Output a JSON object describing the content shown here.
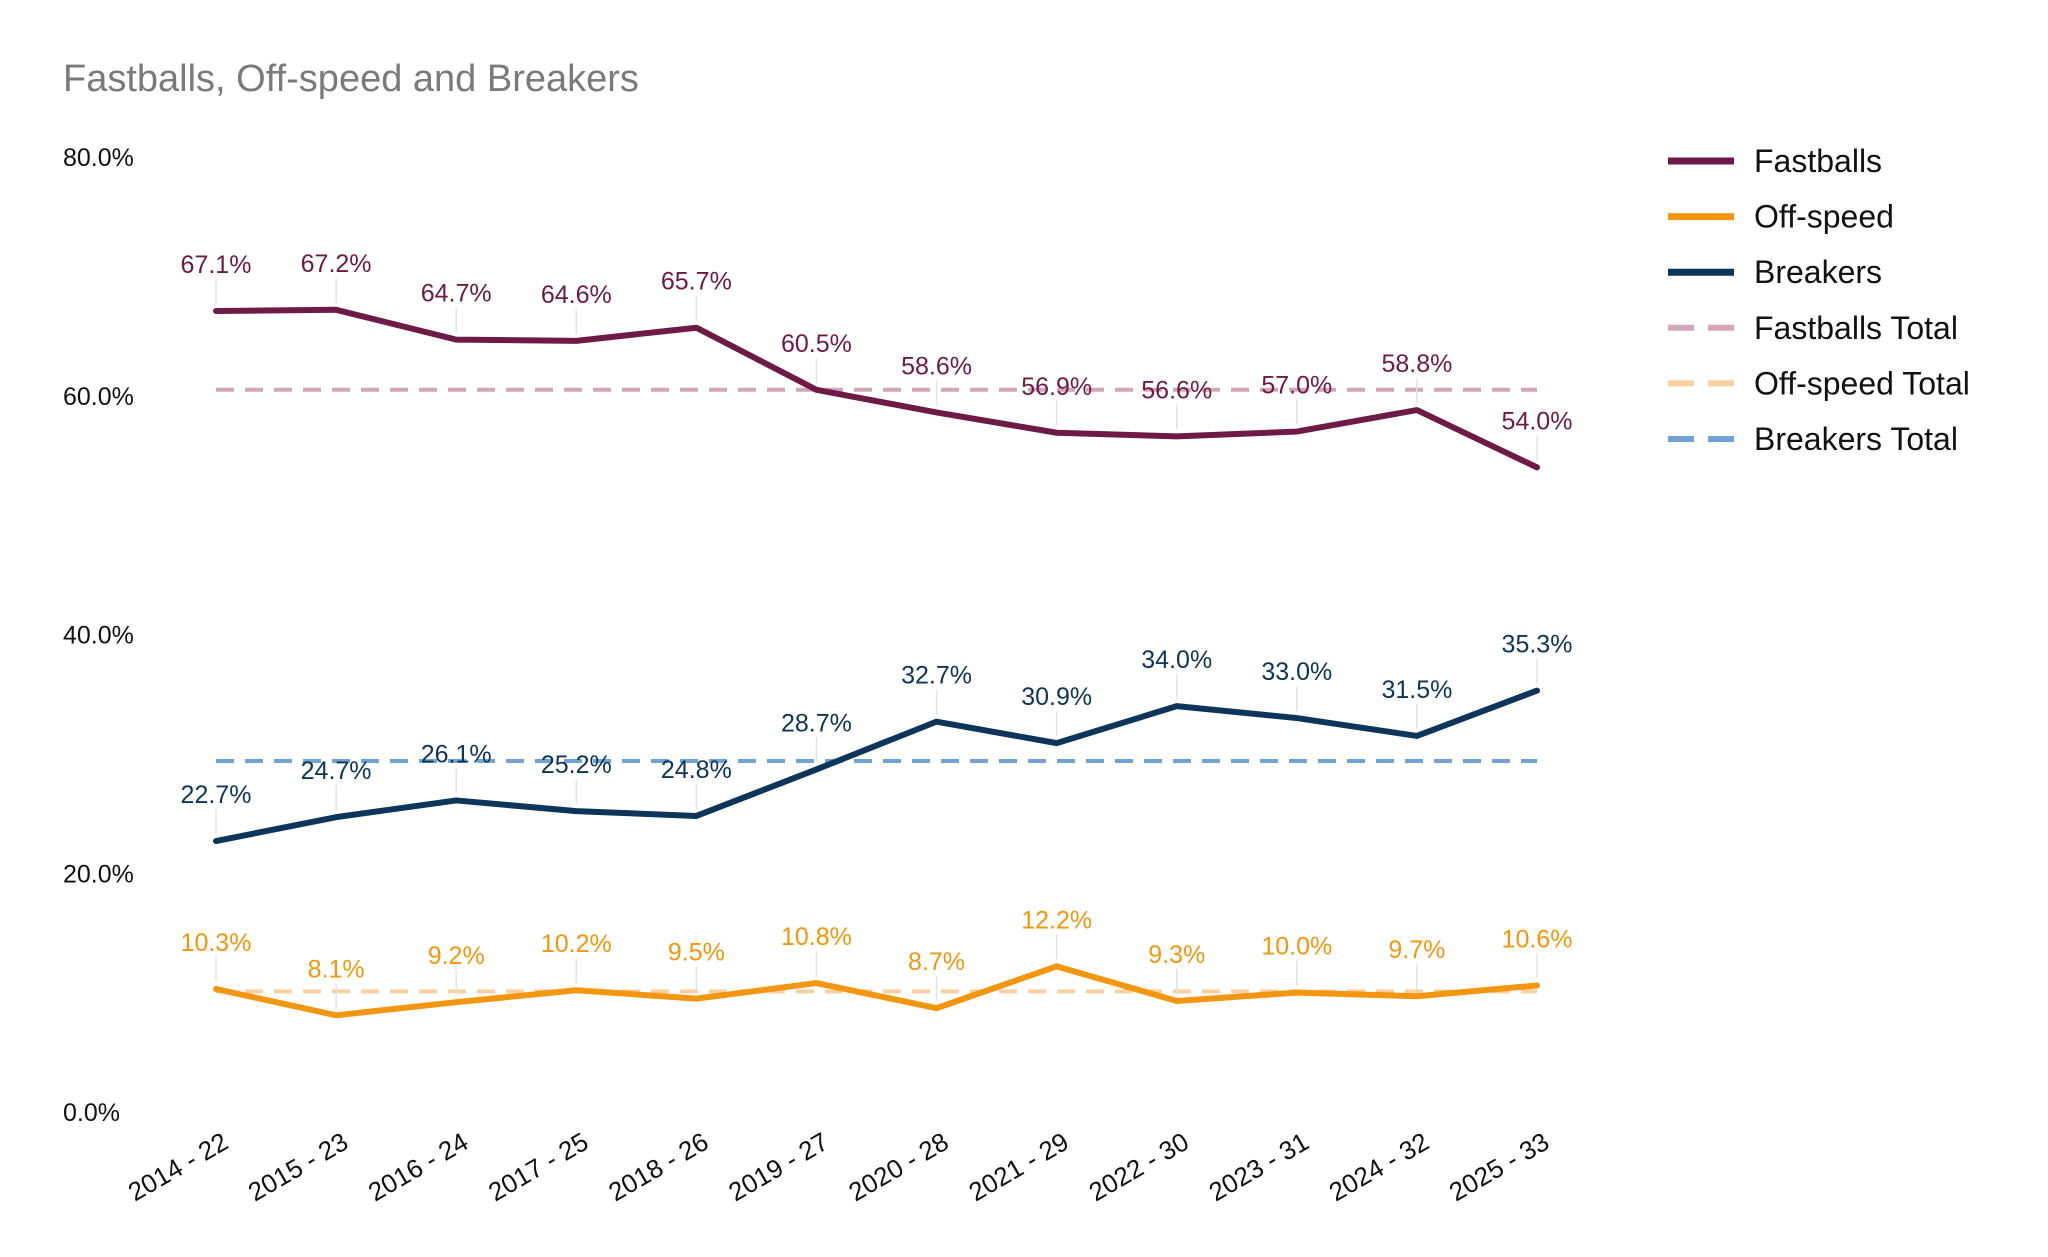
{
  "chart_data": {
    "type": "line",
    "title": "Fastballs, Off-speed and Breakers",
    "xlabel": "",
    "ylabel": "",
    "ylim": [
      0,
      80
    ],
    "yticks": [
      "0.0%",
      "20.0%",
      "40.0%",
      "60.0%",
      "80.0%"
    ],
    "ytick_values": [
      0,
      20,
      40,
      60,
      80
    ],
    "grid": false,
    "legend_position": "top-right",
    "categories": [
      "2014 - 22",
      "2015 - 23",
      "2016 - 24",
      "2017 - 25",
      "2018 - 26",
      "2019 - 27",
      "2020 - 28",
      "2021 - 29",
      "2022 - 30",
      "2023 - 31",
      "2024 - 32",
      "2025 - 33"
    ],
    "series": [
      {
        "name": "Fastballs",
        "color": "#6e1a46",
        "style": "solid",
        "values": [
          67.1,
          67.2,
          64.7,
          64.6,
          65.7,
          60.5,
          58.6,
          56.9,
          56.6,
          57.0,
          58.8,
          54.0
        ],
        "labels": [
          "67.1%",
          "67.2%",
          "64.7%",
          "64.6%",
          "65.7%",
          "60.5%",
          "58.6%",
          "56.9%",
          "56.6%",
          "57.0%",
          "58.8%",
          "54.0%"
        ]
      },
      {
        "name": "Off-speed",
        "color": "#f2960f",
        "style": "solid",
        "values": [
          10.3,
          8.1,
          9.2,
          10.2,
          9.5,
          10.8,
          8.7,
          12.2,
          9.3,
          10.0,
          9.7,
          10.6
        ],
        "labels": [
          "10.3%",
          "8.1%",
          "9.2%",
          "10.2%",
          "9.5%",
          "10.8%",
          "8.7%",
          "12.2%",
          "9.3%",
          "10.0%",
          "9.7%",
          "10.6%"
        ]
      },
      {
        "name": "Breakers",
        "color": "#0d3459",
        "style": "solid",
        "values": [
          22.7,
          24.7,
          26.1,
          25.2,
          24.8,
          28.7,
          32.7,
          30.9,
          34.0,
          33.0,
          31.5,
          35.3
        ],
        "labels": [
          "22.7%",
          "24.7%",
          "26.1%",
          "25.2%",
          "24.8%",
          "28.7%",
          "32.7%",
          "30.9%",
          "34.0%",
          "33.0%",
          "31.5%",
          "35.3%"
        ]
      },
      {
        "name": "Fastballs Total",
        "color": "#d3a5b8",
        "style": "dashed",
        "values": [
          60.5,
          60.5,
          60.5,
          60.5,
          60.5,
          60.5,
          60.5,
          60.5,
          60.5,
          60.5,
          60.5,
          60.5
        ]
      },
      {
        "name": "Off-speed Total",
        "color": "#f8cfa0",
        "style": "dashed",
        "values": [
          10.1,
          10.1,
          10.1,
          10.1,
          10.1,
          10.1,
          10.1,
          10.1,
          10.1,
          10.1,
          10.1,
          10.1
        ]
      },
      {
        "name": "Breakers Total",
        "color": "#6fa3d6",
        "style": "dashed",
        "values": [
          29.4,
          29.4,
          29.4,
          29.4,
          29.4,
          29.4,
          29.4,
          29.4,
          29.4,
          29.4,
          29.4,
          29.4
        ]
      }
    ]
  }
}
